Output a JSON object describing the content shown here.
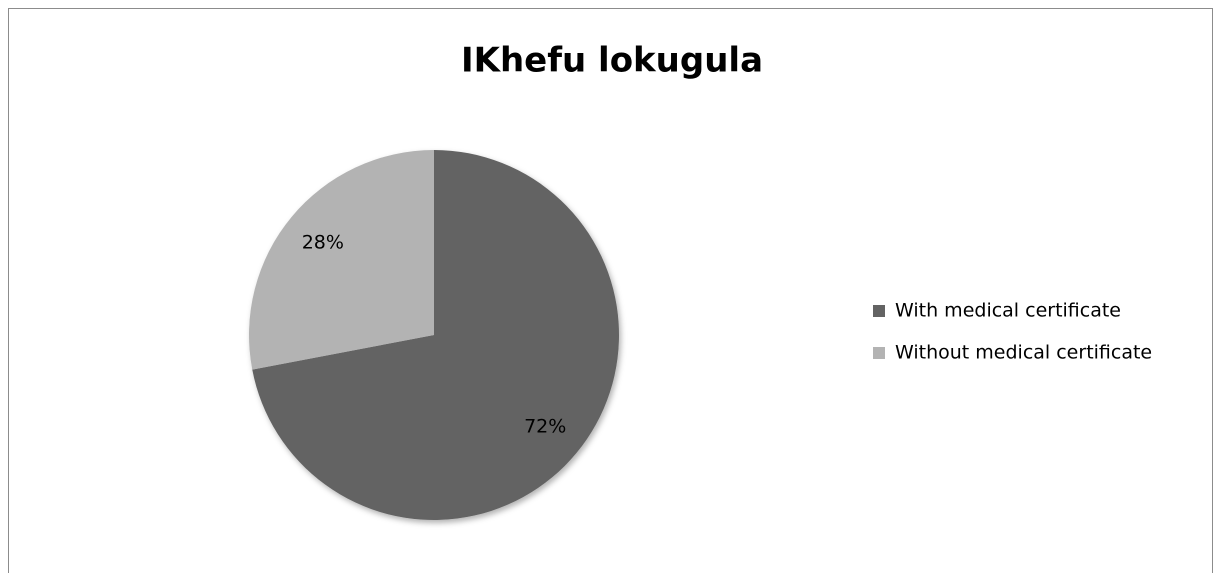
{
  "chart_data": {
    "type": "pie",
    "title": "IKhefu lokugula",
    "categories": [
      "With medical certificate",
      "Without medical certificate"
    ],
    "values": [
      72,
      28
    ],
    "value_labels": [
      "72%",
      "28%"
    ],
    "colors": [
      "#636363",
      "#b3b3b3"
    ],
    "legend": "right"
  }
}
